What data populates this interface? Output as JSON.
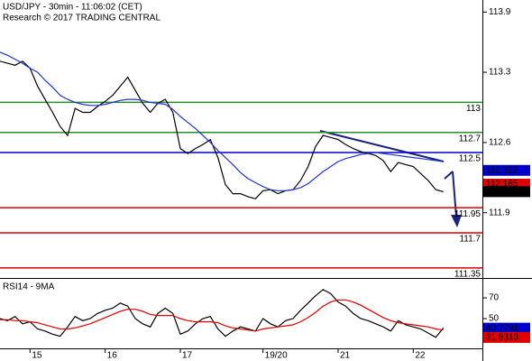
{
  "chart_data": [
    {
      "type": "line",
      "title": "USD/JPY - 30min - 11:06:02 (CET)",
      "subtitle": "Research © 2017 TRADING CENTRAL",
      "xlim": [
        0,
        64.2
      ],
      "ylim": [
        111.25,
        114.02
      ],
      "yticks": [
        111.9,
        112.6,
        113.3,
        113.9
      ],
      "series": [
        {
          "name": "USD/JPY",
          "color": "#000000",
          "values": [
            113.41,
            113.39,
            113.37,
            113.41,
            113.34,
            113.16,
            113.03,
            112.9,
            112.76,
            112.67,
            112.94,
            112.9,
            112.9,
            112.96,
            113.01,
            113.07,
            113.16,
            113.25,
            113.12,
            112.99,
            112.9,
            112.99,
            113.03,
            112.9,
            112.54,
            112.49,
            112.54,
            112.58,
            112.63,
            112.45,
            112.18,
            112.09,
            112.09,
            112.06,
            112.04,
            112.12,
            112.13,
            112.09,
            112.12,
            112.13,
            112.22,
            112.36,
            112.56,
            112.67,
            112.65,
            112.63,
            112.58,
            112.54,
            112.51,
            112.49,
            112.47,
            112.42,
            112.31,
            112.4,
            112.38,
            112.36,
            112.29,
            112.22,
            112.13,
            112.11
          ]
        },
        {
          "name": "MA",
          "color": "#2233cc",
          "values": [
            113.5,
            113.47,
            113.43,
            113.39,
            113.34,
            113.3,
            113.22,
            113.15,
            113.07,
            113.03,
            113.0,
            112.98,
            112.97,
            112.97,
            112.98,
            113.0,
            113.02,
            113.03,
            113.03,
            113.02,
            113.0,
            112.99,
            112.98,
            112.93,
            112.86,
            112.8,
            112.74,
            112.67,
            112.6,
            112.52,
            112.45,
            112.38,
            112.3,
            112.24,
            112.2,
            112.16,
            112.13,
            112.12,
            112.12,
            112.13,
            112.15,
            112.19,
            112.25,
            112.31,
            112.36,
            112.41,
            112.44,
            112.46,
            112.48,
            112.49,
            112.5,
            112.49,
            112.48,
            112.47,
            112.46,
            112.45,
            112.44,
            112.43,
            112.42,
            112.41
          ]
        }
      ],
      "levels": [
        {
          "value": 113,
          "color": "#2e8b2e"
        },
        {
          "value": 112.7,
          "color": "#2e8b2e"
        },
        {
          "value": 112.5,
          "color": "#0000cc"
        },
        {
          "value": 111.95,
          "color": "#e00000"
        },
        {
          "value": 111.7,
          "color": "#e00000"
        },
        {
          "value": 111.35,
          "color": "#e00000"
        }
      ],
      "price_tags": [
        {
          "value": 112.322,
          "color": "#0000cc"
        },
        {
          "value": 112.185,
          "color": "#e00000"
        },
        {
          "value": 112.11,
          "color": "#000000"
        }
      ]
    },
    {
      "type": "line",
      "title": "RSI14 - 9MA",
      "xlim": [
        0,
        64.2
      ],
      "xticks": [
        {
          "value": 4,
          "label": "15"
        },
        {
          "value": 14,
          "label": "16"
        },
        {
          "value": 24,
          "label": "17"
        },
        {
          "value": 35,
          "label": "19/20"
        },
        {
          "value": 45,
          "label": "21"
        },
        {
          "value": 55,
          "label": "22"
        }
      ],
      "ylim": [
        21.3,
        85.7
      ],
      "yticks": [
        50,
        70
      ],
      "series": [
        {
          "name": "RSI14",
          "color": "#000000",
          "values": [
            50,
            48,
            52,
            45,
            47,
            40,
            38,
            35,
            33,
            42,
            52,
            48,
            50,
            55,
            58,
            60,
            65,
            62,
            50,
            45,
            42,
            55,
            60,
            55,
            35,
            38,
            45,
            50,
            52,
            40,
            33,
            38,
            42,
            40,
            38,
            50,
            45,
            42,
            48,
            50,
            58,
            65,
            72,
            78,
            74,
            66,
            62,
            55,
            50,
            48,
            45,
            42,
            38,
            48,
            44,
            42,
            40,
            36,
            32,
            41
          ]
        },
        {
          "name": "9MA",
          "color": "#e00000",
          "values": [
            49,
            49,
            48,
            48,
            47,
            46,
            44,
            42,
            40,
            40,
            41,
            43,
            45,
            48,
            51,
            54,
            57,
            59,
            59,
            57,
            54,
            53,
            53,
            53,
            50,
            48,
            47,
            47,
            47,
            46,
            43,
            41,
            40,
            39,
            38,
            40,
            41,
            42,
            43,
            44,
            47,
            51,
            56,
            62,
            66,
            68,
            68,
            66,
            63,
            59,
            55,
            51,
            48,
            46,
            45,
            44,
            43,
            42,
            40,
            39
          ]
        }
      ],
      "price_tags": [
        {
          "value": 40.7791,
          "color": "#0000cc"
        },
        {
          "value": 31.8313,
          "color": "#e00000"
        }
      ]
    }
  ]
}
